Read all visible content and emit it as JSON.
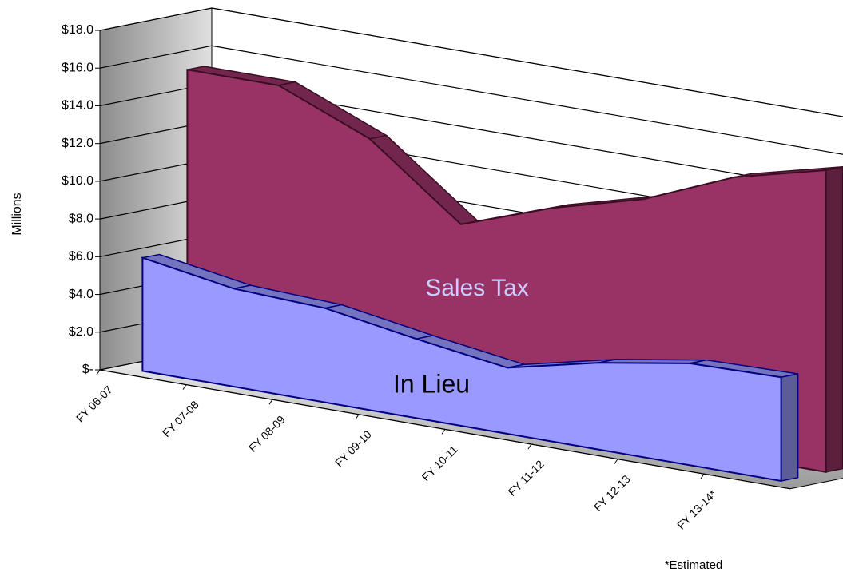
{
  "chart_data": {
    "type": "area3d",
    "y_label": "Millions",
    "annotation": "*Estimated",
    "categories": [
      "FY 06-07",
      "FY 07-08",
      "FY 08-09",
      "FY 09-10",
      "FY 10-11",
      "FY 11-12",
      "FY 12-13",
      "FY 13-14*"
    ],
    "series": [
      {
        "name": "Sales Tax",
        "color": "#993366",
        "values": [
          15.5,
          15.5,
          13.5,
          9.8,
          11.5,
          12.8,
          14.8,
          16.0
        ]
      },
      {
        "name": "In Lieu",
        "color": "#9999ff",
        "values": [
          6.0,
          5.2,
          5.0,
          4.2,
          3.5,
          4.6,
          5.4,
          5.5
        ]
      }
    ],
    "ylim": [
      0,
      18
    ],
    "yticks": [
      {
        "value": 0,
        "label": "$-"
      },
      {
        "value": 2,
        "label": "$2.0"
      },
      {
        "value": 4,
        "label": "$4.0"
      },
      {
        "value": 6,
        "label": "$6.0"
      },
      {
        "value": 8,
        "label": "$8.0"
      },
      {
        "value": 10,
        "label": "$10.0"
      },
      {
        "value": 12,
        "label": "$12.0"
      },
      {
        "value": 14,
        "label": "$14.0"
      },
      {
        "value": 16,
        "label": "$16.0"
      },
      {
        "value": 18,
        "label": "$18.0"
      }
    ],
    "grid": true
  }
}
